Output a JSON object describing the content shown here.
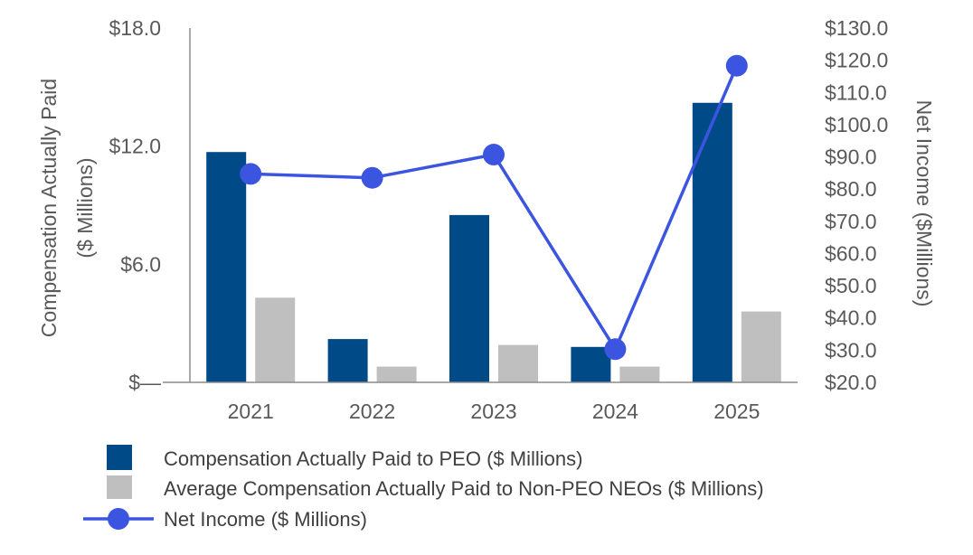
{
  "chart_data": {
    "type": "bar",
    "categories": [
      "2021",
      "2022",
      "2023",
      "2024",
      "2025"
    ],
    "series": [
      {
        "name": "Compensation Actually Paid to PEO ($ Millions)",
        "type": "bar",
        "axis": "left",
        "color": "#004b87",
        "values": [
          11.7,
          2.2,
          8.5,
          1.8,
          14.2
        ]
      },
      {
        "name": "Average Compensation Actually Paid to Non-PEO NEOs ($ Millions)",
        "type": "bar",
        "axis": "left",
        "color": "#bfbfbf",
        "values": [
          4.3,
          0.8,
          1.9,
          0.8,
          3.6
        ]
      },
      {
        "name": "Net Income ($ Millions)",
        "type": "line",
        "axis": "right",
        "color": "#3c55e0",
        "values": [
          84.7,
          83.5,
          90.7,
          30.3,
          118.3
        ]
      }
    ],
    "left_axis": {
      "label_line1": "Compensation Actually Paid",
      "label_line2": "($ Millions)",
      "ylim": [
        0,
        18
      ],
      "ticks": [
        0,
        6,
        12,
        18
      ],
      "tick_labels": [
        "$—",
        "$6.0",
        "$12.0",
        "$18.0"
      ]
    },
    "right_axis": {
      "label": "Net Income ($Millions)",
      "ylim": [
        20,
        130
      ],
      "ticks": [
        20,
        30,
        40,
        50,
        60,
        70,
        80,
        90,
        100,
        110,
        120,
        130
      ],
      "tick_labels": [
        "$20.0",
        "$30.0",
        "$40.0",
        "$50.0",
        "$60.0",
        "$70.0",
        "$80.0",
        "$90.0",
        "$100.0",
        "$110.0",
        "$120.0",
        "$130.0"
      ]
    },
    "legend_position": "bottom-left",
    "grid": false
  }
}
